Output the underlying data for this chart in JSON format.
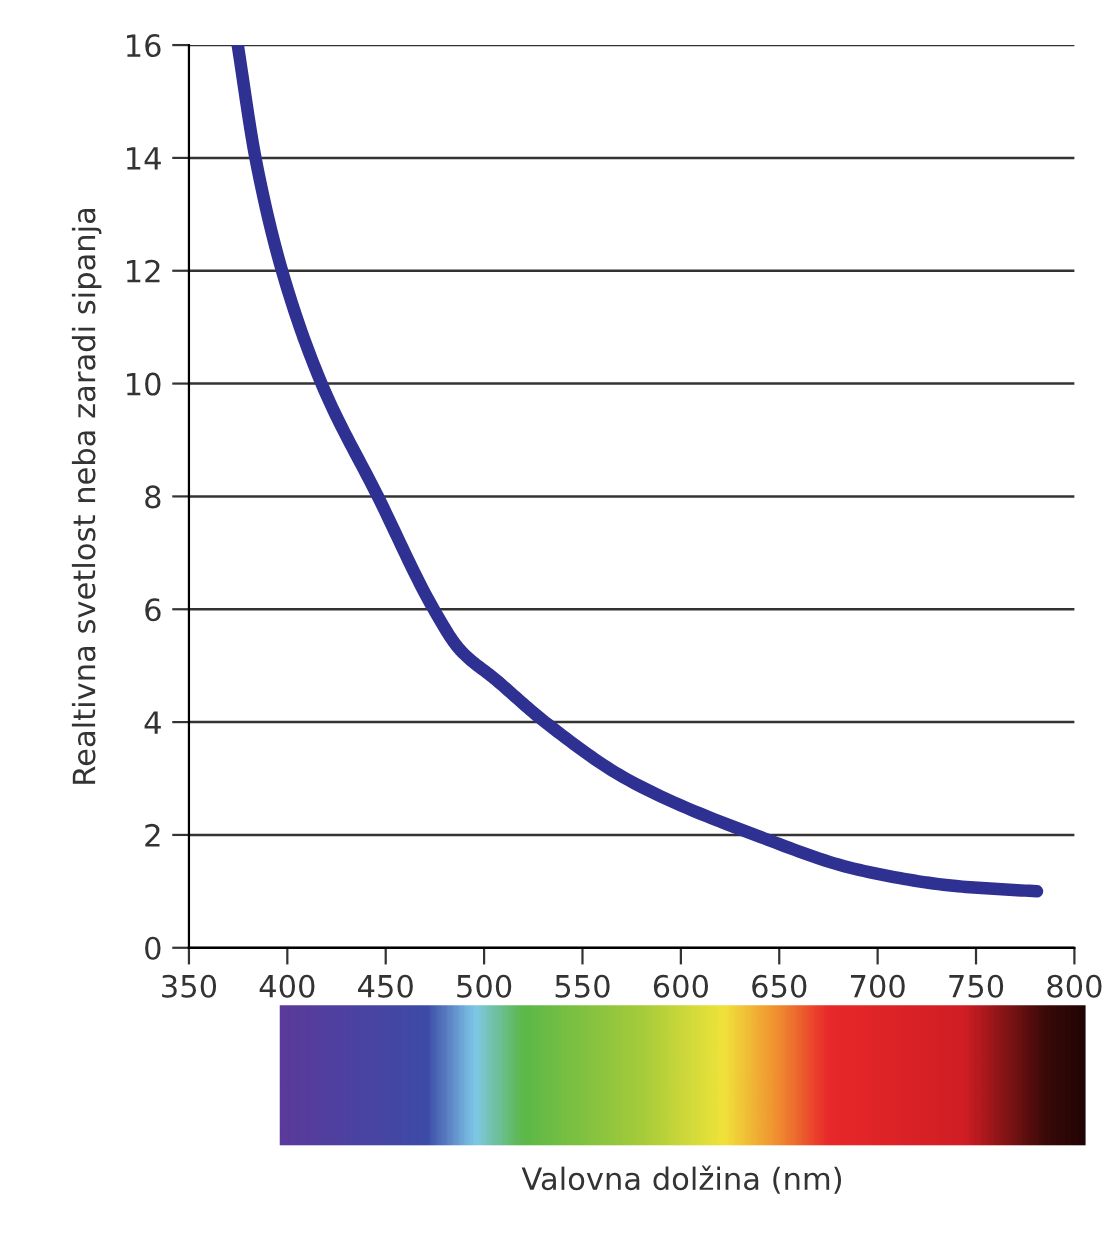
{
  "chart_data": {
    "type": "line",
    "annotations": [
      "Valovna dolžina (nm)"
    ],
    "ylabel": "Realtivna svetlost neba zaradi sipanja",
    "x": [
      374.8,
      383.8,
      397.3,
      417.4,
      446,
      474.4,
      487.8,
      506,
      531,
      573,
      640,
      690.6,
      741,
      781
    ],
    "series": [
      {
        "color": "#2e3192",
        "values": [
          16,
          14,
          12,
          10,
          8,
          6,
          5.28,
          4.75,
          4.0,
          2.98,
          1.97,
          1.38,
          1.09,
          1.0
        ]
      }
    ],
    "xlim": [
      350,
      800
    ],
    "xticks": [
      350,
      400,
      450,
      500,
      550,
      600,
      650,
      700,
      750,
      800
    ],
    "ylim": [
      0,
      16
    ],
    "yticks": [
      0,
      2,
      4,
      6,
      8,
      10,
      12,
      14,
      16
    ],
    "grid": "y",
    "marker": "none",
    "line_style": "solid"
  }
}
